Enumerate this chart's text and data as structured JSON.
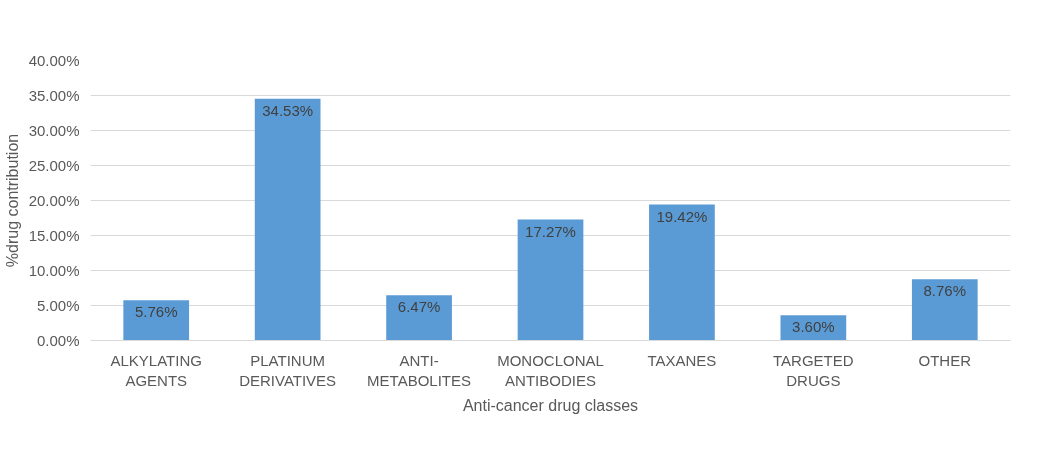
{
  "chart_data": {
    "type": "bar",
    "xlabel": "Anti-cancer drug classes",
    "ylabel": "%drug contribution",
    "categories": [
      "ALKYLATING AGENTS",
      "PLATINUM DERIVATIVES",
      "ANTI-METABOLITES",
      "MONOCLONAL ANTIBODIES",
      "TAXANES",
      "TARGETED DRUGS",
      "OTHER"
    ],
    "values": [
      5.76,
      34.53,
      6.47,
      17.27,
      19.42,
      3.6,
      8.76
    ],
    "value_labels": [
      "5.76%",
      "34.53%",
      "6.47%",
      "17.27%",
      "19.42%",
      "3.60%",
      "8.76%"
    ],
    "color": "#5b9bd5",
    "ylim": [
      0,
      40
    ],
    "yticks": [
      {
        "value": 0,
        "label": "0.00%"
      },
      {
        "value": 5,
        "label": "5.00%"
      },
      {
        "value": 10,
        "label": "10.00%"
      },
      {
        "value": 15,
        "label": "15.00%"
      },
      {
        "value": 20,
        "label": "20.00%"
      },
      {
        "value": 25,
        "label": "25.00%"
      },
      {
        "value": 30,
        "label": "30.00%"
      },
      {
        "value": 35,
        "label": "35.00%"
      },
      {
        "value": 40,
        "label": "40.00%"
      }
    ],
    "grid": "y"
  }
}
